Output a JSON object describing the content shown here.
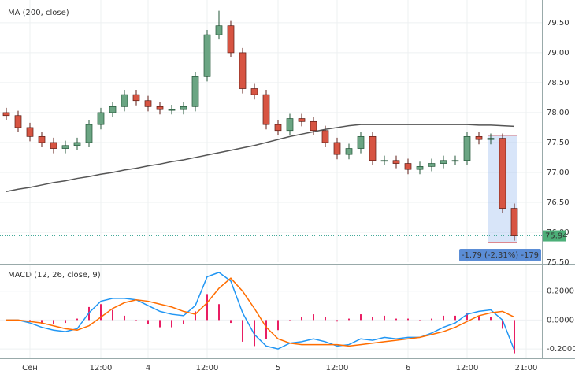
{
  "chart_data": [
    {
      "type": "candlestick",
      "legend": "MA (200, close)",
      "categories": [
        null,
        null,
        "Сен",
        null,
        null,
        null,
        null,
        null,
        "12:00",
        null,
        null,
        null,
        "4",
        null,
        null,
        null,
        null,
        "12:00",
        null,
        null,
        null,
        null,
        null,
        "5",
        null,
        null,
        null,
        null,
        "12:00",
        null,
        null,
        null,
        null,
        null,
        "6",
        null,
        null,
        null,
        null,
        "12:00",
        null,
        null,
        null,
        null,
        "21:00"
      ],
      "open": [
        78.0,
        77.95,
        77.75,
        77.6,
        77.5,
        77.4,
        77.45,
        77.5,
        77.8,
        78.0,
        78.1,
        78.3,
        78.2,
        78.1,
        78.05,
        78.05,
        78.1,
        78.6,
        79.3,
        79.45,
        79.0,
        78.4,
        78.3,
        77.8,
        77.7,
        77.9,
        77.85,
        77.7,
        77.5,
        77.3,
        77.4,
        77.6,
        77.2,
        77.2,
        77.15,
        77.05,
        77.1,
        77.15,
        77.2,
        77.2,
        77.6,
        77.55,
        77.57,
        76.4,
        null
      ],
      "high": [
        78.08,
        78.03,
        77.83,
        77.68,
        77.58,
        77.53,
        77.58,
        77.88,
        78.08,
        78.18,
        78.38,
        78.38,
        78.28,
        78.18,
        78.13,
        78.18,
        78.68,
        79.38,
        79.7,
        79.53,
        79.08,
        78.48,
        78.38,
        77.88,
        77.98,
        77.98,
        77.93,
        77.78,
        77.58,
        77.48,
        77.68,
        77.68,
        77.28,
        77.28,
        77.23,
        77.18,
        77.23,
        77.28,
        77.28,
        77.68,
        77.68,
        77.65,
        77.65,
        76.48,
        null
      ],
      "low": [
        77.87,
        77.67,
        77.52,
        77.42,
        77.32,
        77.32,
        77.37,
        77.42,
        77.72,
        77.92,
        78.02,
        78.12,
        78.02,
        77.97,
        77.97,
        77.97,
        78.02,
        78.52,
        79.22,
        78.92,
        78.32,
        78.22,
        77.72,
        77.62,
        77.62,
        77.77,
        77.62,
        77.42,
        77.22,
        77.22,
        77.32,
        77.12,
        77.12,
        77.07,
        76.97,
        76.97,
        77.02,
        77.07,
        77.12,
        77.12,
        77.47,
        77.47,
        76.32,
        75.86,
        null
      ],
      "close": [
        77.95,
        77.75,
        77.6,
        77.5,
        77.4,
        77.45,
        77.5,
        77.8,
        78.0,
        78.1,
        78.3,
        78.2,
        78.1,
        78.05,
        78.05,
        78.1,
        78.6,
        79.3,
        79.45,
        79.0,
        78.4,
        78.3,
        77.8,
        77.7,
        77.9,
        77.85,
        77.7,
        77.5,
        77.3,
        77.4,
        77.6,
        77.2,
        77.2,
        77.15,
        77.05,
        77.1,
        77.15,
        77.2,
        77.2,
        77.6,
        77.55,
        77.57,
        76.4,
        75.94,
        null
      ],
      "up_color": "#6ba583",
      "down_color": "#d75442",
      "series": [
        {
          "name": "MA",
          "color": "#555555",
          "values": [
            76.68,
            76.72,
            76.75,
            76.79,
            76.83,
            76.86,
            76.9,
            76.93,
            76.97,
            77.0,
            77.04,
            77.07,
            77.11,
            77.14,
            77.18,
            77.21,
            77.25,
            77.29,
            77.33,
            77.37,
            77.41,
            77.45,
            77.5,
            77.55,
            77.6,
            77.64,
            77.68,
            77.72,
            77.75,
            77.78,
            77.8,
            77.8,
            77.8,
            77.8,
            77.8,
            77.8,
            77.8,
            77.8,
            77.8,
            77.8,
            77.79,
            77.79,
            77.78,
            77.77,
            null
          ]
        }
      ],
      "last_price": 75.94,
      "measure": {
        "label": "-1.79 (-2.31%) -179",
        "top": 77.62,
        "bottom": 75.83
      },
      "ylim": [
        75.5,
        79.88
      ],
      "yticks": [
        {
          "value": 75.5,
          "label": "75.50"
        },
        {
          "value": 76,
          "label": "76.00"
        },
        {
          "value": 76.5,
          "label": "76.50"
        },
        {
          "value": 77,
          "label": "77.00"
        },
        {
          "value": 77.5,
          "label": "77.50"
        },
        {
          "value": 78,
          "label": "78.00"
        },
        {
          "value": 78.5,
          "label": "78.50"
        },
        {
          "value": 79,
          "label": "79.00"
        },
        {
          "value": 79.5,
          "label": "79.50"
        }
      ],
      "grid": true
    },
    {
      "type": "macd",
      "legend": "MACD (12, 26, close, 9)",
      "series": [
        {
          "name": "MACD",
          "color": "#2196f3",
          "values": [
            0.0,
            0.0,
            -0.02,
            -0.05,
            -0.07,
            -0.08,
            -0.06,
            0.05,
            0.13,
            0.15,
            0.15,
            0.14,
            0.1,
            0.06,
            0.04,
            0.03,
            0.1,
            0.3,
            0.33,
            0.27,
            0.05,
            -0.1,
            -0.18,
            -0.2,
            -0.16,
            -0.15,
            -0.13,
            -0.15,
            -0.18,
            -0.17,
            -0.13,
            -0.14,
            -0.12,
            -0.13,
            -0.12,
            -0.12,
            -0.09,
            -0.05,
            -0.02,
            0.04,
            0.06,
            0.07,
            0.0,
            -0.21,
            null
          ]
        },
        {
          "name": "Signal",
          "color": "#ff6d00",
          "values": [
            0.0,
            0.0,
            -0.01,
            -0.02,
            -0.04,
            -0.06,
            -0.07,
            -0.04,
            0.02,
            0.08,
            0.12,
            0.14,
            0.13,
            0.11,
            0.09,
            0.06,
            0.04,
            0.12,
            0.22,
            0.29,
            0.2,
            0.08,
            -0.05,
            -0.13,
            -0.16,
            -0.17,
            -0.17,
            -0.17,
            -0.17,
            -0.18,
            -0.17,
            -0.16,
            -0.15,
            -0.14,
            -0.13,
            -0.12,
            -0.1,
            -0.08,
            -0.05,
            -0.01,
            0.03,
            0.05,
            0.06,
            0.02,
            null
          ]
        }
      ],
      "histogram": {
        "color": "#e91e63",
        "values": [
          0,
          0,
          -0.01,
          -0.03,
          -0.03,
          -0.02,
          0.01,
          0.09,
          0.11,
          0.07,
          0.03,
          0.0,
          -0.03,
          -0.05,
          -0.05,
          -0.03,
          0.06,
          0.18,
          0.11,
          -0.02,
          -0.15,
          -0.18,
          -0.13,
          -0.07,
          0.0,
          0.02,
          0.04,
          0.02,
          -0.01,
          0.01,
          0.04,
          0.02,
          0.03,
          0.01,
          0.01,
          0.0,
          0.01,
          0.03,
          0.03,
          0.05,
          0.03,
          0.02,
          -0.06,
          -0.23,
          null
        ]
      },
      "ylim": [
        -0.265,
        0.373
      ],
      "yticks": [
        {
          "value": 0.2,
          "label": "0.2000"
        },
        {
          "value": 0,
          "label": "0.0000"
        },
        {
          "value": -0.2,
          "label": "-0.2000"
        }
      ],
      "grid": true
    }
  ]
}
